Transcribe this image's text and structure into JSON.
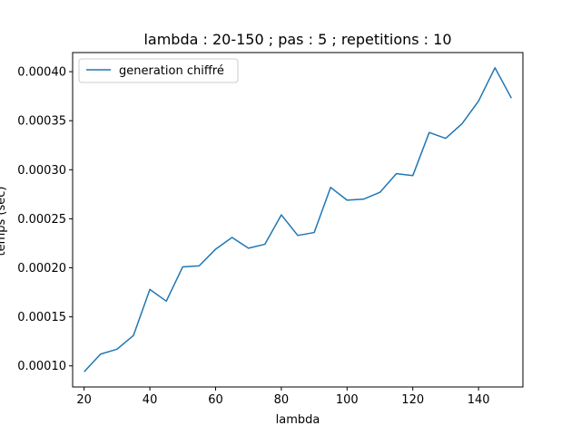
{
  "chart_data": {
    "type": "line",
    "title": "lambda : 20-150 ; pas : 5 ; repetitions : 10",
    "xlabel": "lambda",
    "ylabel": "temps (sec)",
    "xlim": [
      16.5,
      153.5
    ],
    "ylim": [
      7.85e-05,
      0.0004195
    ],
    "xticks": [
      20,
      40,
      60,
      80,
      100,
      120,
      140
    ],
    "yticks": [
      0.0001,
      0.00015,
      0.0002,
      0.00025,
      0.0003,
      0.00035,
      0.0004
    ],
    "ytick_labels": [
      "0.00010",
      "0.00015",
      "0.00020",
      "0.00025",
      "0.00030",
      "0.00035",
      "0.00040"
    ],
    "grid": false,
    "legend_position": "top-left",
    "series": [
      {
        "name": "generation chiffré",
        "color": "#1f77b4",
        "x": [
          20,
          25,
          30,
          35,
          40,
          45,
          50,
          55,
          60,
          65,
          70,
          75,
          80,
          85,
          90,
          95,
          100,
          105,
          110,
          115,
          120,
          125,
          130,
          135,
          140,
          145,
          150
        ],
        "y": [
          9.4e-05,
          0.000112,
          0.000117,
          0.000131,
          0.000178,
          0.000166,
          0.000201,
          0.000202,
          0.000219,
          0.000231,
          0.00022,
          0.000224,
          0.000254,
          0.000233,
          0.000236,
          0.000282,
          0.000269,
          0.00027,
          0.000277,
          0.000296,
          0.000294,
          0.000338,
          0.000332,
          0.000347,
          0.00037,
          0.000404,
          0.000373
        ]
      }
    ]
  }
}
